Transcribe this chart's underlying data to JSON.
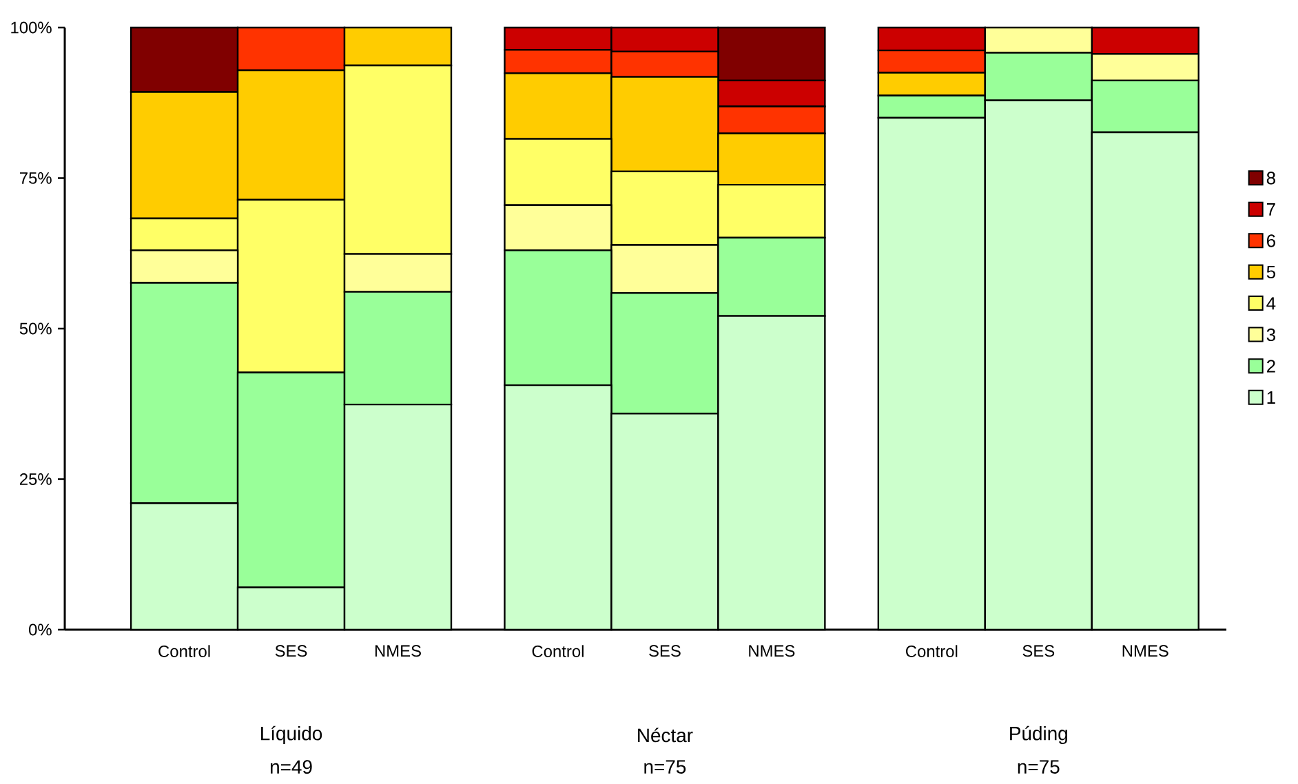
{
  "chart_data": {
    "type": "bar",
    "stacked": true,
    "annotations": [
      "Líquido",
      "n=49",
      "Néctar",
      "n=75",
      "Púding",
      "n=75"
    ],
    "categories": [
      "Control",
      "SES",
      "NMES",
      "Control",
      "SES",
      "NMES",
      "Control",
      "SES",
      "NMES"
    ],
    "ylim": [
      0,
      100
    ],
    "yticks": [
      {
        "value": 0,
        "label": "0%"
      },
      {
        "value": 25,
        "label": "25%"
      },
      {
        "value": 50,
        "label": "50%"
      },
      {
        "value": 75,
        "label": "75%"
      },
      {
        "value": 100,
        "label": "100%"
      }
    ],
    "legend": "right",
    "series": [
      {
        "name": "1",
        "color": "#ccffcc",
        "values": [
          21.0,
          7.0,
          37.4,
          40.6,
          35.9,
          52.1,
          85.0,
          87.9,
          82.6
        ]
      },
      {
        "name": "2",
        "color": "#99ff99",
        "values": [
          36.6,
          35.7,
          18.7,
          22.4,
          20.0,
          13.0,
          3.7,
          7.9,
          8.6
        ]
      },
      {
        "name": "3",
        "color": "#ffff99",
        "values": [
          5.4,
          0,
          6.3,
          7.5,
          8.0,
          0,
          0,
          4.2,
          4.4
        ]
      },
      {
        "name": "4",
        "color": "#ffff66",
        "values": [
          5.3,
          28.7,
          31.3,
          11.0,
          12.2,
          8.8,
          0,
          0,
          0
        ]
      },
      {
        "name": "5",
        "color": "#ffcc00",
        "values": [
          21.0,
          21.5,
          6.3,
          10.9,
          15.7,
          8.5,
          3.8,
          0,
          0
        ]
      },
      {
        "name": "6",
        "color": "#ff3300",
        "values": [
          0,
          7.1,
          0,
          3.9,
          4.2,
          4.5,
          3.7,
          0,
          0
        ]
      },
      {
        "name": "7",
        "color": "#cc0000",
        "values": [
          0,
          0,
          0,
          3.7,
          4.0,
          4.3,
          3.8,
          0,
          4.4
        ]
      },
      {
        "name": "8",
        "color": "#800000",
        "values": [
          10.7,
          0,
          0,
          0,
          0,
          8.8,
          0,
          0,
          0
        ]
      }
    ]
  }
}
